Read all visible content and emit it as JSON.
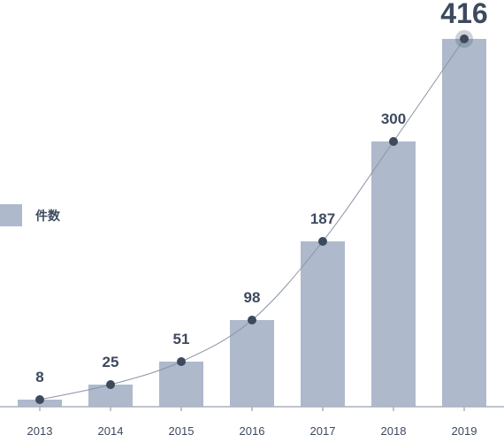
{
  "chart_data": {
    "type": "bar",
    "categories": [
      "2013",
      "2014",
      "2015",
      "2016",
      "2017",
      "2018",
      "2019"
    ],
    "series": [
      {
        "name": "件数",
        "values": [
          8,
          25,
          51,
          98,
          187,
          300,
          416
        ]
      }
    ],
    "overlay": "line-with-markers",
    "highlight_last": true,
    "ylim": [
      0,
      416
    ],
    "grid": false,
    "legend_position": "left-middle",
    "colors": {
      "bar": "#aeb9cb",
      "marker": "#3d4a5e",
      "line": "#8a94a6",
      "text": "#3d4a5e",
      "axis": "#aab2bf"
    }
  }
}
